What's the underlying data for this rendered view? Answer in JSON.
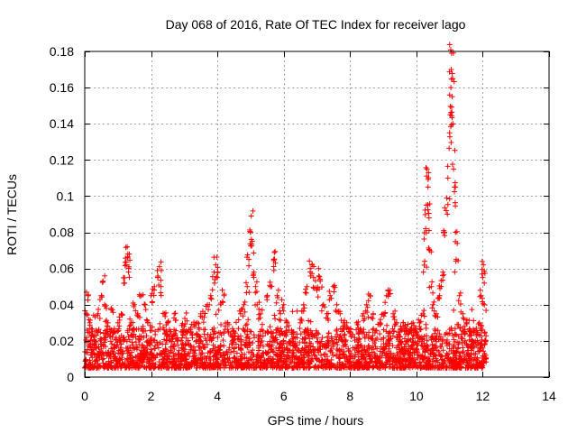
{
  "chart_data": {
    "type": "scatter",
    "title": "Day 068 of 2016, Rate Of TEC Index for receiver lago",
    "xlabel": "GPS time / hours",
    "ylabel": "ROTI / TECUs",
    "xlim": [
      0,
      14
    ],
    "ylim": [
      0,
      0.18
    ],
    "xticks": [
      0,
      2,
      4,
      6,
      8,
      10,
      12,
      14
    ],
    "xtick_labels": [
      "0",
      "2",
      "4",
      "6",
      "8",
      "10",
      "12",
      "14"
    ],
    "yticks": [
      0,
      0.02,
      0.04,
      0.06,
      0.08,
      0.1,
      0.12,
      0.14,
      0.16,
      0.18
    ],
    "ytick_labels": [
      "0",
      "0.02",
      "0.04",
      "0.06",
      "0.08",
      "0.1",
      "0.12",
      "0.14",
      "0.16",
      "0.18"
    ],
    "grid": true,
    "marker": "+",
    "series": [
      {
        "name": "ROTI",
        "color": "#ff0000",
        "note": "dense band of points between 0.005 and 0.02 across 0-12.1 h; representative sample below",
        "points": [
          [
            0.05,
            0.035
          ],
          [
            0.1,
            0.045
          ],
          [
            0.15,
            0.03
          ],
          [
            0.2,
            0.025
          ],
          [
            0.3,
            0.02
          ],
          [
            0.4,
            0.035
          ],
          [
            0.5,
            0.045
          ],
          [
            0.55,
            0.053
          ],
          [
            0.6,
            0.04
          ],
          [
            0.7,
            0.03
          ],
          [
            0.8,
            0.038
          ],
          [
            0.9,
            0.025
          ],
          [
            1.0,
            0.03
          ],
          [
            1.1,
            0.035
          ],
          [
            1.2,
            0.052
          ],
          [
            1.25,
            0.062
          ],
          [
            1.28,
            0.072
          ],
          [
            1.3,
            0.068
          ],
          [
            1.32,
            0.058
          ],
          [
            1.4,
            0.03
          ],
          [
            1.5,
            0.04
          ],
          [
            1.6,
            0.035
          ],
          [
            1.7,
            0.045
          ],
          [
            1.8,
            0.04
          ],
          [
            1.9,
            0.03
          ],
          [
            2.0,
            0.045
          ],
          [
            2.1,
            0.05
          ],
          [
            2.2,
            0.055
          ],
          [
            2.25,
            0.061
          ],
          [
            2.3,
            0.05
          ],
          [
            2.4,
            0.035
          ],
          [
            2.5,
            0.03
          ],
          [
            2.6,
            0.025
          ],
          [
            2.7,
            0.035
          ],
          [
            2.8,
            0.02
          ],
          [
            3.0,
            0.028
          ],
          [
            3.2,
            0.025
          ],
          [
            3.4,
            0.03
          ],
          [
            3.5,
            0.035
          ],
          [
            3.6,
            0.033
          ],
          [
            3.7,
            0.04
          ],
          [
            3.8,
            0.045
          ],
          [
            3.9,
            0.058
          ],
          [
            3.95,
            0.062
          ],
          [
            4.0,
            0.055
          ],
          [
            4.1,
            0.04
          ],
          [
            4.2,
            0.045
          ],
          [
            4.3,
            0.03
          ],
          [
            4.5,
            0.025
          ],
          [
            4.7,
            0.035
          ],
          [
            4.8,
            0.04
          ],
          [
            4.9,
            0.05
          ],
          [
            4.95,
            0.065
          ],
          [
            5.0,
            0.08
          ],
          [
            5.02,
            0.089
          ],
          [
            5.05,
            0.075
          ],
          [
            5.1,
            0.058
          ],
          [
            5.15,
            0.05
          ],
          [
            5.2,
            0.04
          ],
          [
            5.3,
            0.035
          ],
          [
            5.5,
            0.045
          ],
          [
            5.6,
            0.05
          ],
          [
            5.7,
            0.065
          ],
          [
            5.75,
            0.063
          ],
          [
            5.8,
            0.045
          ],
          [
            5.9,
            0.035
          ],
          [
            6.0,
            0.04
          ],
          [
            6.1,
            0.03
          ],
          [
            6.3,
            0.025
          ],
          [
            6.5,
            0.03
          ],
          [
            6.6,
            0.04
          ],
          [
            6.7,
            0.05
          ],
          [
            6.8,
            0.06
          ],
          [
            6.85,
            0.062
          ],
          [
            6.9,
            0.055
          ],
          [
            7.0,
            0.048
          ],
          [
            7.05,
            0.06
          ],
          [
            7.1,
            0.053
          ],
          [
            7.2,
            0.04
          ],
          [
            7.3,
            0.035
          ],
          [
            7.4,
            0.045
          ],
          [
            7.5,
            0.05
          ],
          [
            7.6,
            0.04
          ],
          [
            7.7,
            0.035
          ],
          [
            7.8,
            0.03
          ],
          [
            7.9,
            0.03
          ],
          [
            8.0,
            0.025
          ],
          [
            8.2,
            0.03
          ],
          [
            8.4,
            0.035
          ],
          [
            8.5,
            0.04
          ],
          [
            8.6,
            0.045
          ],
          [
            8.7,
            0.035
          ],
          [
            8.9,
            0.03
          ],
          [
            9.0,
            0.035
          ],
          [
            9.1,
            0.045
          ],
          [
            9.2,
            0.048
          ],
          [
            9.3,
            0.035
          ],
          [
            9.4,
            0.03
          ],
          [
            9.5,
            0.025
          ],
          [
            9.6,
            0.03
          ],
          [
            9.7,
            0.025
          ],
          [
            9.8,
            0.025
          ],
          [
            9.9,
            0.03
          ],
          [
            10.0,
            0.025
          ],
          [
            10.1,
            0.03
          ],
          [
            10.2,
            0.035
          ],
          [
            10.25,
            0.064
          ],
          [
            10.28,
            0.082
          ],
          [
            10.3,
            0.095
          ],
          [
            10.32,
            0.115
          ],
          [
            10.35,
            0.105
          ],
          [
            10.38,
            0.088
          ],
          [
            10.4,
            0.07
          ],
          [
            10.45,
            0.05
          ],
          [
            10.5,
            0.04
          ],
          [
            10.6,
            0.035
          ],
          [
            10.7,
            0.045
          ],
          [
            10.75,
            0.05
          ],
          [
            10.8,
            0.058
          ],
          [
            10.85,
            0.08
          ],
          [
            10.9,
            0.092
          ],
          [
            10.95,
            0.11
          ],
          [
            11.0,
            0.135
          ],
          [
            11.02,
            0.145
          ],
          [
            11.04,
            0.16
          ],
          [
            11.05,
            0.17
          ],
          [
            11.06,
            0.179
          ],
          [
            11.08,
            0.155
          ],
          [
            11.1,
            0.14
          ],
          [
            11.12,
            0.115
          ],
          [
            11.15,
            0.105
          ],
          [
            11.18,
            0.08
          ],
          [
            11.2,
            0.065
          ],
          [
            11.3,
            0.045
          ],
          [
            11.4,
            0.035
          ],
          [
            11.5,
            0.03
          ],
          [
            11.6,
            0.025
          ],
          [
            11.7,
            0.02
          ],
          [
            11.8,
            0.025
          ],
          [
            11.9,
            0.03
          ],
          [
            11.95,
            0.045
          ],
          [
            12.0,
            0.055
          ],
          [
            12.02,
            0.062
          ],
          [
            12.05,
            0.04
          ],
          [
            12.08,
            0.02
          ],
          [
            12.1,
            0.01
          ]
        ]
      }
    ]
  }
}
